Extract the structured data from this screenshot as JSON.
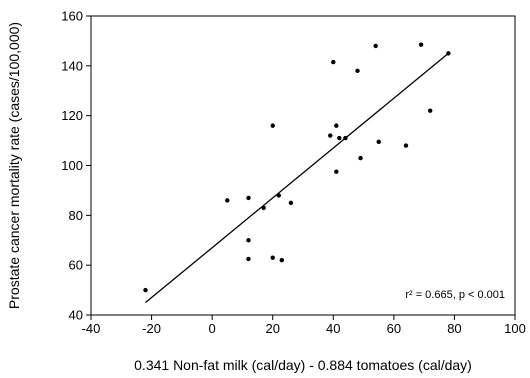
{
  "chart_data": {
    "type": "scatter",
    "xlabel": "0.341 Non-fat milk (cal/day) - 0.884 tomatoes (cal/day)",
    "ylabel": "Prostate cancer mortality rate (cases/100,000)",
    "xlim": [
      -40,
      100
    ],
    "ylim": [
      40,
      160
    ],
    "xticks": [
      -40,
      -20,
      0,
      20,
      40,
      60,
      80,
      100
    ],
    "yticks": [
      40,
      60,
      80,
      100,
      120,
      140,
      160
    ],
    "grid": false,
    "points": [
      {
        "x": -22,
        "y": 50
      },
      {
        "x": 5,
        "y": 86
      },
      {
        "x": 12,
        "y": 87
      },
      {
        "x": 12,
        "y": 70
      },
      {
        "x": 12,
        "y": 62.5
      },
      {
        "x": 17,
        "y": 83
      },
      {
        "x": 20,
        "y": 116
      },
      {
        "x": 20,
        "y": 63
      },
      {
        "x": 22,
        "y": 88
      },
      {
        "x": 23,
        "y": 62
      },
      {
        "x": 26,
        "y": 85
      },
      {
        "x": 39,
        "y": 112
      },
      {
        "x": 40,
        "y": 141.5
      },
      {
        "x": 41,
        "y": 97.5
      },
      {
        "x": 41,
        "y": 116
      },
      {
        "x": 42,
        "y": 111
      },
      {
        "x": 44,
        "y": 111
      },
      {
        "x": 48,
        "y": 138
      },
      {
        "x": 49,
        "y": 103
      },
      {
        "x": 54,
        "y": 148
      },
      {
        "x": 55,
        "y": 109.5
      },
      {
        "x": 64,
        "y": 108
      },
      {
        "x": 69,
        "y": 148.5
      },
      {
        "x": 72,
        "y": 122
      },
      {
        "x": 78,
        "y": 145
      }
    ],
    "fit_line": {
      "x": [
        -22,
        78
      ],
      "y": [
        45,
        145
      ]
    },
    "annotation": "r² = 0.665, p < 0.001"
  }
}
